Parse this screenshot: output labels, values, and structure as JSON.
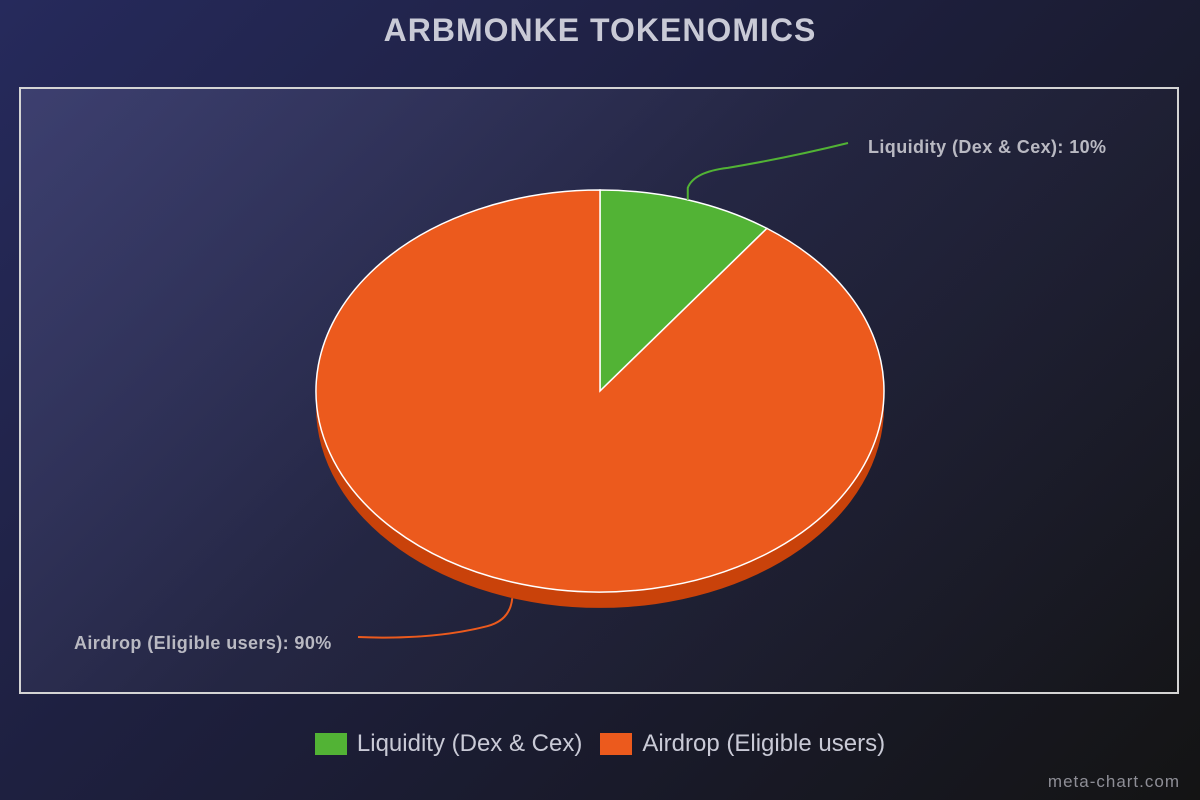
{
  "chart_data": {
    "type": "pie",
    "title": "ARBMONKE TOKENOMICS",
    "slices": [
      {
        "name": "Liquidity (Dex & Cex)",
        "value": 10,
        "label": "Liquidity (Dex & Cex): 10%",
        "color": "#52b335",
        "side_color": "#3e8a28"
      },
      {
        "name": "Airdrop (Eligible users)",
        "value": 90,
        "label": "Airdrop (Eligible users): 90%",
        "color": "#ec5a1d",
        "side_color": "#c9420a"
      }
    ],
    "legend": {
      "placement": "bottom"
    }
  },
  "credit": "meta-chart.com"
}
